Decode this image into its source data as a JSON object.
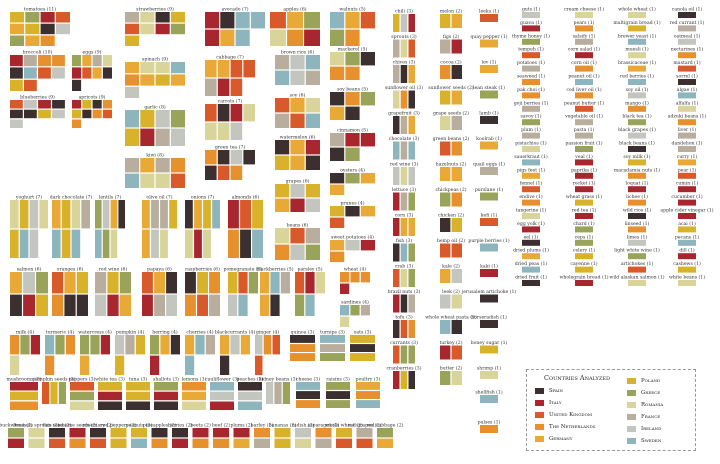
{
  "chart_data": {
    "type": "treemap",
    "title": "",
    "countries": [
      {
        "name": "Spain",
        "color": "#3b2f2f"
      },
      {
        "name": "Italy",
        "color": "#a8262e"
      },
      {
        "name": "United Kingdom",
        "color": "#d85a2a"
      },
      {
        "name": "The Netherlands",
        "color": "#e6902e"
      },
      {
        "name": "Germany",
        "color": "#e9a936"
      },
      {
        "name": "Poland",
        "color": "#d8b22a"
      },
      {
        "name": "Greece",
        "color": "#9aa35a"
      },
      {
        "name": "Romania",
        "color": "#d8d49a"
      },
      {
        "name": "France",
        "color": "#b9ae9e"
      },
      {
        "name": "Ireland",
        "color": "#c3c6bf"
      },
      {
        "name": "Sweden",
        "color": "#8db5bd"
      }
    ],
    "items": [
      {
        "label": "tomatoes (11)",
        "count": 11
      },
      {
        "label": "strawberries (9)",
        "count": 9
      },
      {
        "label": "avocado (7)",
        "count": 7
      },
      {
        "label": "apples (6)",
        "count": 6
      },
      {
        "label": "walnuts (5)",
        "count": 5
      },
      {
        "label": "broccoli (10)",
        "count": 10
      },
      {
        "label": "eggs (9)",
        "count": 9
      },
      {
        "label": "spinach (9)",
        "count": 9
      },
      {
        "label": "cabbage (7)",
        "count": 7
      },
      {
        "label": "brown rice (6)",
        "count": 6
      },
      {
        "label": "mackerel (5)",
        "count": 5
      },
      {
        "label": "soy (6)",
        "count": 6
      },
      {
        "label": "soy beans (5)",
        "count": 5
      },
      {
        "label": "garlic (8)",
        "count": 8
      },
      {
        "label": "carrots (7)",
        "count": 7
      },
      {
        "label": "blueberries (9)",
        "count": 9
      },
      {
        "label": "apricots (9)",
        "count": 9
      },
      {
        "label": "cinnamon (5)",
        "count": 5
      },
      {
        "label": "watermelon (6)",
        "count": 6
      },
      {
        "label": "kiwi (8)",
        "count": 8
      },
      {
        "label": "green tea (7)",
        "count": 7
      },
      {
        "label": "oysters (4)",
        "count": 4
      },
      {
        "label": "grapes (6)",
        "count": 6
      },
      {
        "label": "yoghurt (7)",
        "count": 7
      },
      {
        "label": "dark chocolate (7)",
        "count": 7
      },
      {
        "label": "lentils (7)",
        "count": 7
      },
      {
        "label": "olive oil (7)",
        "count": 7
      },
      {
        "label": "onions (7)",
        "count": 7
      },
      {
        "label": "almonds (6)",
        "count": 6
      },
      {
        "label": "prunes (4)",
        "count": 4
      },
      {
        "label": "beans (6)",
        "count": 6
      },
      {
        "label": "sweet potatoes (4)",
        "count": 4
      },
      {
        "label": "salmon (6)",
        "count": 6
      },
      {
        "label": "oranges (6)",
        "count": 6
      },
      {
        "label": "red wine (6)",
        "count": 6
      },
      {
        "label": "papaya (6)",
        "count": 6
      },
      {
        "label": "raspberries (6)",
        "count": 6
      },
      {
        "label": "pomegranate (5)",
        "count": 5
      },
      {
        "label": "blackberries (5)",
        "count": 5
      },
      {
        "label": "parsley (5)",
        "count": 5
      },
      {
        "label": "wheat (4)",
        "count": 4
      },
      {
        "label": "sardines (4)",
        "count": 4
      },
      {
        "label": "milk (4)",
        "count": 4
      },
      {
        "label": "turmeric (4)",
        "count": 4
      },
      {
        "label": "watercress (4)",
        "count": 4
      },
      {
        "label": "pumpkin (4)",
        "count": 4
      },
      {
        "label": "herring (4)",
        "count": 4
      },
      {
        "label": "cherries (4)",
        "count": 4
      },
      {
        "label": "blackcurrants (4)",
        "count": 4
      },
      {
        "label": "ginger (4)",
        "count": 4
      },
      {
        "label": "quinoa (3)",
        "count": 3
      },
      {
        "label": "turnips (3)",
        "count": 3
      },
      {
        "label": "oats (3)",
        "count": 3
      },
      {
        "label": "mushrooms (3)",
        "count": 3
      },
      {
        "label": "pumpkin seeds (3)",
        "count": 3
      },
      {
        "label": "peppers (3)",
        "count": 3
      },
      {
        "label": "white tea (3)",
        "count": 3
      },
      {
        "label": "tuna (3)",
        "count": 3
      },
      {
        "label": "shallots (3)",
        "count": 3
      },
      {
        "label": "lemons (3)",
        "count": 3
      },
      {
        "label": "cauliflower (3)",
        "count": 3
      },
      {
        "label": "peaches (3)",
        "count": 3
      },
      {
        "label": "kidney beans (3)",
        "count": 3
      },
      {
        "label": "cheese (3)",
        "count": 3
      },
      {
        "label": "raisins (3)",
        "count": 3
      },
      {
        "label": "poultry (3)",
        "count": 3
      },
      {
        "label": "buckwheat (2)",
        "count": 2
      },
      {
        "label": "brussels sprouts (2)",
        "count": 2
      },
      {
        "label": "flax seed (2)",
        "count": 2
      },
      {
        "label": "sesame seeds (2)",
        "count": 2
      },
      {
        "label": "rosemary (2)",
        "count": 2
      },
      {
        "label": "red peppers (2)",
        "count": 2
      },
      {
        "label": "peanuts (2)",
        "count": 2
      },
      {
        "label": "pineapples (2)",
        "count": 2
      },
      {
        "label": "berries (2)",
        "count": 2
      },
      {
        "label": "beets (2)",
        "count": 2
      },
      {
        "label": "beef (2)",
        "count": 2
      },
      {
        "label": "plums (2)",
        "count": 2
      },
      {
        "label": "barley (2)",
        "count": 2
      },
      {
        "label": "bananas (2)",
        "count": 2
      },
      {
        "label": "radish (2)",
        "count": 2
      },
      {
        "label": "asparagus (2)",
        "count": 2
      },
      {
        "label": "whole wheat (2)",
        "count": 2
      },
      {
        "label": "red grapes (2)",
        "count": 2
      },
      {
        "label": "red cabbage (2)",
        "count": 2
      },
      {
        "label": "chili (3)",
        "count": 3
      },
      {
        "label": "melon (2)",
        "count": 2
      },
      {
        "label": "leeks (1)",
        "count": 1
      },
      {
        "label": "sprouts (3)",
        "count": 3
      },
      {
        "label": "figs (2)",
        "count": 2
      },
      {
        "label": "quay pepper (1)",
        "count": 1
      },
      {
        "label": "chives (3)",
        "count": 3
      },
      {
        "label": "cocoa (2)",
        "count": 2
      },
      {
        "label": "lev (1)",
        "count": 1
      },
      {
        "label": "sunflower oil (3)",
        "count": 3
      },
      {
        "label": "sunflower seeds (2)",
        "count": 2
      },
      {
        "label": "lean steak (1)",
        "count": 1
      },
      {
        "label": "grapefruit (3)",
        "count": 3
      },
      {
        "label": "grape seeds (2)",
        "count": 2
      },
      {
        "label": "lamb (1)",
        "count": 1
      },
      {
        "label": "chocolate (3)",
        "count": 3
      },
      {
        "label": "green beans (2)",
        "count": 2
      },
      {
        "label": "koolrab (1)",
        "count": 1
      },
      {
        "label": "red wine (3)",
        "count": 3
      },
      {
        "label": "hazelnuts (2)",
        "count": 2
      },
      {
        "label": "quail eggs (1)",
        "count": 1
      },
      {
        "label": "lettuce (3)",
        "count": 3
      },
      {
        "label": "chickpeas (2)",
        "count": 2
      },
      {
        "label": "purslane (1)",
        "count": 1
      },
      {
        "label": "corn (3)",
        "count": 3
      },
      {
        "label": "chicken (2)",
        "count": 2
      },
      {
        "label": "kefi (1)",
        "count": 1
      },
      {
        "label": "fish (3)",
        "count": 3
      },
      {
        "label": "hemp oil (2)",
        "count": 2
      },
      {
        "label": "purple berries (1)",
        "count": 1
      },
      {
        "label": "crab (3)",
        "count": 3
      },
      {
        "label": "kale (2)",
        "count": 2
      },
      {
        "label": "kaki (1)",
        "count": 1
      },
      {
        "label": "brazil nuts (3)",
        "count": 3
      },
      {
        "label": "leek (2)",
        "count": 2
      },
      {
        "label": "jerusalem artichoke (1)",
        "count": 1
      },
      {
        "label": "tofu (3)",
        "count": 3
      },
      {
        "label": "whole wheat pasta (2)",
        "count": 2
      },
      {
        "label": "horseradish (1)",
        "count": 1
      },
      {
        "label": "currants (3)",
        "count": 3
      },
      {
        "label": "turkey (2)",
        "count": 2
      },
      {
        "label": "honey sugar (1)",
        "count": 1
      },
      {
        "label": "cranberries (3)",
        "count": 3
      },
      {
        "label": "butter (2)",
        "count": 2
      },
      {
        "label": "shrimp (1)",
        "count": 1
      },
      {
        "label": "shellfish (1)",
        "count": 1
      },
      {
        "label": "pulses (1)",
        "count": 1
      },
      {
        "label": "guts (1)",
        "count": 1
      },
      {
        "label": "cream cheese (1)",
        "count": 1
      },
      {
        "label": "whole wheat (1)",
        "count": 1
      },
      {
        "label": "canola oil (1)",
        "count": 1
      },
      {
        "label": "guava (1)",
        "count": 1
      },
      {
        "label": "pears (1)",
        "count": 1
      },
      {
        "label": "multigrain bread (1)",
        "count": 1
      },
      {
        "label": "red currant (1)",
        "count": 1
      },
      {
        "label": "thyme honey (1)",
        "count": 1
      },
      {
        "label": "salsify (1)",
        "count": 1
      },
      {
        "label": "brewer yeast (1)",
        "count": 1
      },
      {
        "label": "oatmeal (1)",
        "count": 1
      },
      {
        "label": "tempeh (1)",
        "count": 1
      },
      {
        "label": "corn salad (1)",
        "count": 1
      },
      {
        "label": "muesli (1)",
        "count": 1
      },
      {
        "label": "nectarines (1)",
        "count": 1
      },
      {
        "label": "potatoes (1)",
        "count": 1
      },
      {
        "label": "corn oil (1)",
        "count": 1
      },
      {
        "label": "brassicaceae (1)",
        "count": 1
      },
      {
        "label": "mustard (1)",
        "count": 1
      },
      {
        "label": "seaweed (1)",
        "count": 1
      },
      {
        "label": "peanut oil (1)",
        "count": 1
      },
      {
        "label": "red berries (1)",
        "count": 1
      },
      {
        "label": "sorrel (1)",
        "count": 1
      },
      {
        "label": "pak choi (1)",
        "count": 1
      },
      {
        "label": "cod liver oil (1)",
        "count": 1
      },
      {
        "label": "soy oil (1)",
        "count": 1
      },
      {
        "label": "algae (1)",
        "count": 1
      },
      {
        "label": "goji berries (1)",
        "count": 1
      },
      {
        "label": "peanut butter (1)",
        "count": 1
      },
      {
        "label": "mango (1)",
        "count": 1
      },
      {
        "label": "alfalfa (1)",
        "count": 1
      },
      {
        "label": "savoy (1)",
        "count": 1
      },
      {
        "label": "vegetable oil (1)",
        "count": 1
      },
      {
        "label": "black tea (1)",
        "count": 1
      },
      {
        "label": "adzuki beans (1)",
        "count": 1
      },
      {
        "label": "plum (1)",
        "count": 1
      },
      {
        "label": "pasta (1)",
        "count": 1
      },
      {
        "label": "black grapes (1)",
        "count": 1
      },
      {
        "label": "liver (1)",
        "count": 1
      },
      {
        "label": "pistachios (1)",
        "count": 1
      },
      {
        "label": "passion fruit (1)",
        "count": 1
      },
      {
        "label": "black beans (1)",
        "count": 1
      },
      {
        "label": "dandelion (1)",
        "count": 1
      },
      {
        "label": "sauerkraut (1)",
        "count": 1
      },
      {
        "label": "veal (1)",
        "count": 1
      },
      {
        "label": "soy milk (1)",
        "count": 1
      },
      {
        "label": "curry (1)",
        "count": 1
      },
      {
        "label": "pigs feet (1)",
        "count": 1
      },
      {
        "label": "paprika (1)",
        "count": 1
      },
      {
        "label": "macadamia nuts (1)",
        "count": 1
      },
      {
        "label": "pear (1)",
        "count": 1
      },
      {
        "label": "fennel (1)",
        "count": 1
      },
      {
        "label": "rocket (1)",
        "count": 1
      },
      {
        "label": "loquat (1)",
        "count": 1
      },
      {
        "label": "cumin (1)",
        "count": 1
      },
      {
        "label": "endive (1)",
        "count": 1
      },
      {
        "label": "wheat grass (1)",
        "count": 1
      },
      {
        "label": "lichee (1)",
        "count": 1
      },
      {
        "label": "cucumber (1)",
        "count": 1
      },
      {
        "label": "tangerine (1)",
        "count": 1
      },
      {
        "label": "red tea (1)",
        "count": 1
      },
      {
        "label": "wild rice (1)",
        "count": 1
      },
      {
        "label": "apple cider vinegar (1)",
        "count": 1
      },
      {
        "label": "egg yolk (1)",
        "count": 1
      },
      {
        "label": "chard (1)",
        "count": 1
      },
      {
        "label": "linseed (1)",
        "count": 1
      },
      {
        "label": "acai (1)",
        "count": 1
      },
      {
        "label": "eel (1)",
        "count": 1
      },
      {
        "label": "ceps (1)",
        "count": 1
      },
      {
        "label": "limes (1)",
        "count": 1
      },
      {
        "label": "pecans (1)",
        "count": 1
      },
      {
        "label": "dried plums (1)",
        "count": 1
      },
      {
        "label": "celery (1)",
        "count": 1
      },
      {
        "label": "light white wine (1)",
        "count": 1
      },
      {
        "label": "dill (1)",
        "count": 1
      },
      {
        "label": "dried peas (1)",
        "count": 1
      },
      {
        "label": "cayenne (1)",
        "count": 1
      },
      {
        "label": "artichokes (1)",
        "count": 1
      },
      {
        "label": "cashews (1)",
        "count": 1
      },
      {
        "label": "dried fruit (1)",
        "count": 1
      },
      {
        "label": "wholegrain bread (1)",
        "count": 1
      },
      {
        "label": "wild alaskan salmon (1)",
        "count": 1
      },
      {
        "label": "white beans (1)",
        "count": 1
      }
    ]
  },
  "legend": {
    "title": "Countries Analyzed",
    "position": "bottom-right"
  }
}
